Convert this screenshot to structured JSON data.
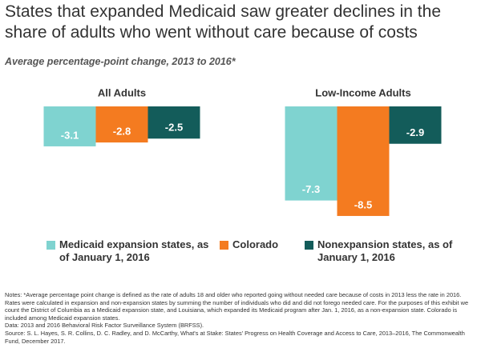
{
  "chart_data": {
    "type": "bar",
    "title": "States that expanded Medicaid saw greater declines in the share of adults who went without care because of costs",
    "subtitle": "Average percentage-point change, 2013 to 2016*",
    "categories": [
      "All Adults",
      "Low-Income Adults"
    ],
    "series": [
      {
        "name": "Medicaid expansion states, as of January 1, 2016",
        "color": "#7fd3d0",
        "values": [
          -3.1,
          -7.3
        ]
      },
      {
        "name": "Colorado",
        "color": "#f47b20",
        "values": [
          -2.8,
          -8.5
        ]
      },
      {
        "name": "Nonexpansion states, as of January 1, 2016",
        "color": "#135c5a",
        "values": [
          -2.5,
          -2.9
        ]
      }
    ],
    "ylim": [
      -9,
      0
    ]
  },
  "footer": {
    "notes": "Notes:  *Average percentage point change is defined as the rate of adults 18 and older who reported going without needed care because of costs in 2013 less the rate in 2016. Rates were calculated in expansion and non-expansion states by summing the number of individuals who did and did not forego needed care. For the purposes of this exhibit we count the District of Columbia as a Medicaid expansion state, and Louisiana, which expanded its Medicaid program after Jan. 1, 2016, as a non-expansion state. Colorado is included among Medicaid expansion states.",
    "data": "Data: 2013 and 2016 Behavioral Risk Factor Surveillance System (BRFSS).",
    "source": "Source: S. L. Hayes, S. R. Collins, D. C. Radley, and D. McCarthy, What's at Stake: States' Progress on Health Coverage and Access to Care, 2013–2016, The Commonwealth Fund, December 2017."
  }
}
